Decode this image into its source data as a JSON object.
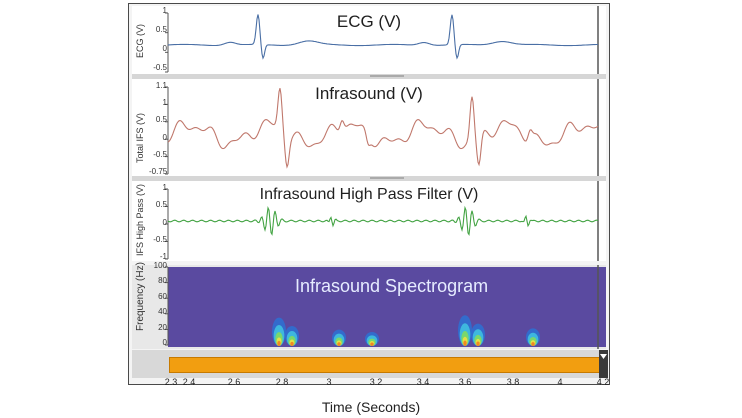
{
  "window": {
    "ecg_title": "ECG (V)",
    "ifs_title": "Infrasound (V)",
    "hp_title": "Infrasound High Pass Filter (V)",
    "spec_title": "Infrasound Spectrogram"
  },
  "panels": {
    "ecg": {
      "ylabel": "ECG (V)",
      "yticks": [
        "1",
        "0.5",
        "0",
        "-0.5"
      ]
    },
    "ifs": {
      "ylabel": "Total IFS (V)",
      "yticks": [
        "1.1",
        "1",
        "0.5",
        "0",
        "-0.5",
        "-0.75"
      ]
    },
    "hp": {
      "ylabel": "IFS High Pass (V)",
      "yticks": [
        "1",
        "0.5",
        "0",
        "-0.5",
        "-1"
      ]
    },
    "spec": {
      "ylabel": "Frequency (Hz)",
      "yticks": [
        "100",
        "80",
        "60",
        "40",
        "20",
        "0"
      ]
    }
  },
  "xaxis": {
    "label": "Time (Seconds)",
    "ticks": [
      "2.3",
      "2.4",
      "2.6",
      "2.8",
      "3",
      "3.2",
      "3.4",
      "3.6",
      "3.8",
      "4",
      "4.2"
    ]
  },
  "colors": {
    "ecg": "#4a6fa5",
    "ifs": "#c0786c",
    "hp": "#43a343",
    "spec_bg": "#5a4aa0",
    "scroll_thumb": "#f29e10"
  }
}
